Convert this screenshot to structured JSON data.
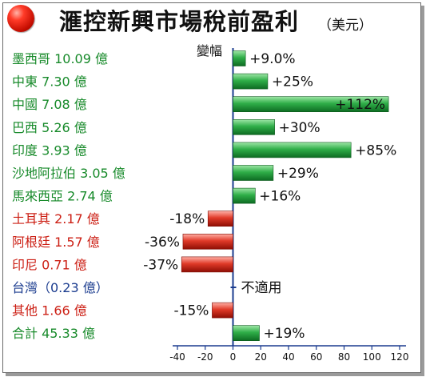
{
  "header": {
    "title": "滙控新興市場稅前盈利",
    "unit": "（美元）",
    "change_label": "變幅"
  },
  "colors": {
    "positive_bar": "#1f9a3a",
    "negative_bar": "#d42a1c",
    "green_text": "#178a2a",
    "red_text": "#cc1f14",
    "blue_text": "#1b3c8f",
    "axis": "#1b3c8f"
  },
  "chart_data": {
    "type": "bar",
    "orientation": "horizontal",
    "title": "滙控新興市場稅前盈利",
    "categories": [
      "墨西哥 10.09 億",
      "中東 7.30 億",
      "中國 7.08 億",
      "巴西 5.26 億",
      "印度 3.93 億",
      "沙地阿拉伯 3.05 億",
      "馬來西亞 2.74 億",
      "土耳其 2.17 億",
      "阿根廷 1.57 億",
      "印尼 0.71 億",
      "台灣（0.23 億）",
      "其他 1.66 億",
      "合計 45.33 億"
    ],
    "values": [
      9,
      25,
      112,
      30,
      85,
      29,
      16,
      -18,
      -36,
      -37,
      null,
      -15,
      19
    ],
    "value_labels": [
      "+9.0%",
      "+25%",
      "+112%",
      "+30%",
      "+85%",
      "+29%",
      "+16%",
      "-18%",
      "-36%",
      "-37%",
      "不適用",
      "-15%",
      "+19%"
    ],
    "label_color": [
      "green",
      "green",
      "green",
      "green",
      "green",
      "green",
      "green",
      "red",
      "red",
      "red",
      "blue",
      "red",
      "green"
    ],
    "xlim": [
      -40,
      120
    ],
    "x_ticks": [
      -40,
      -20,
      0,
      20,
      40,
      60,
      80,
      100,
      120
    ]
  }
}
